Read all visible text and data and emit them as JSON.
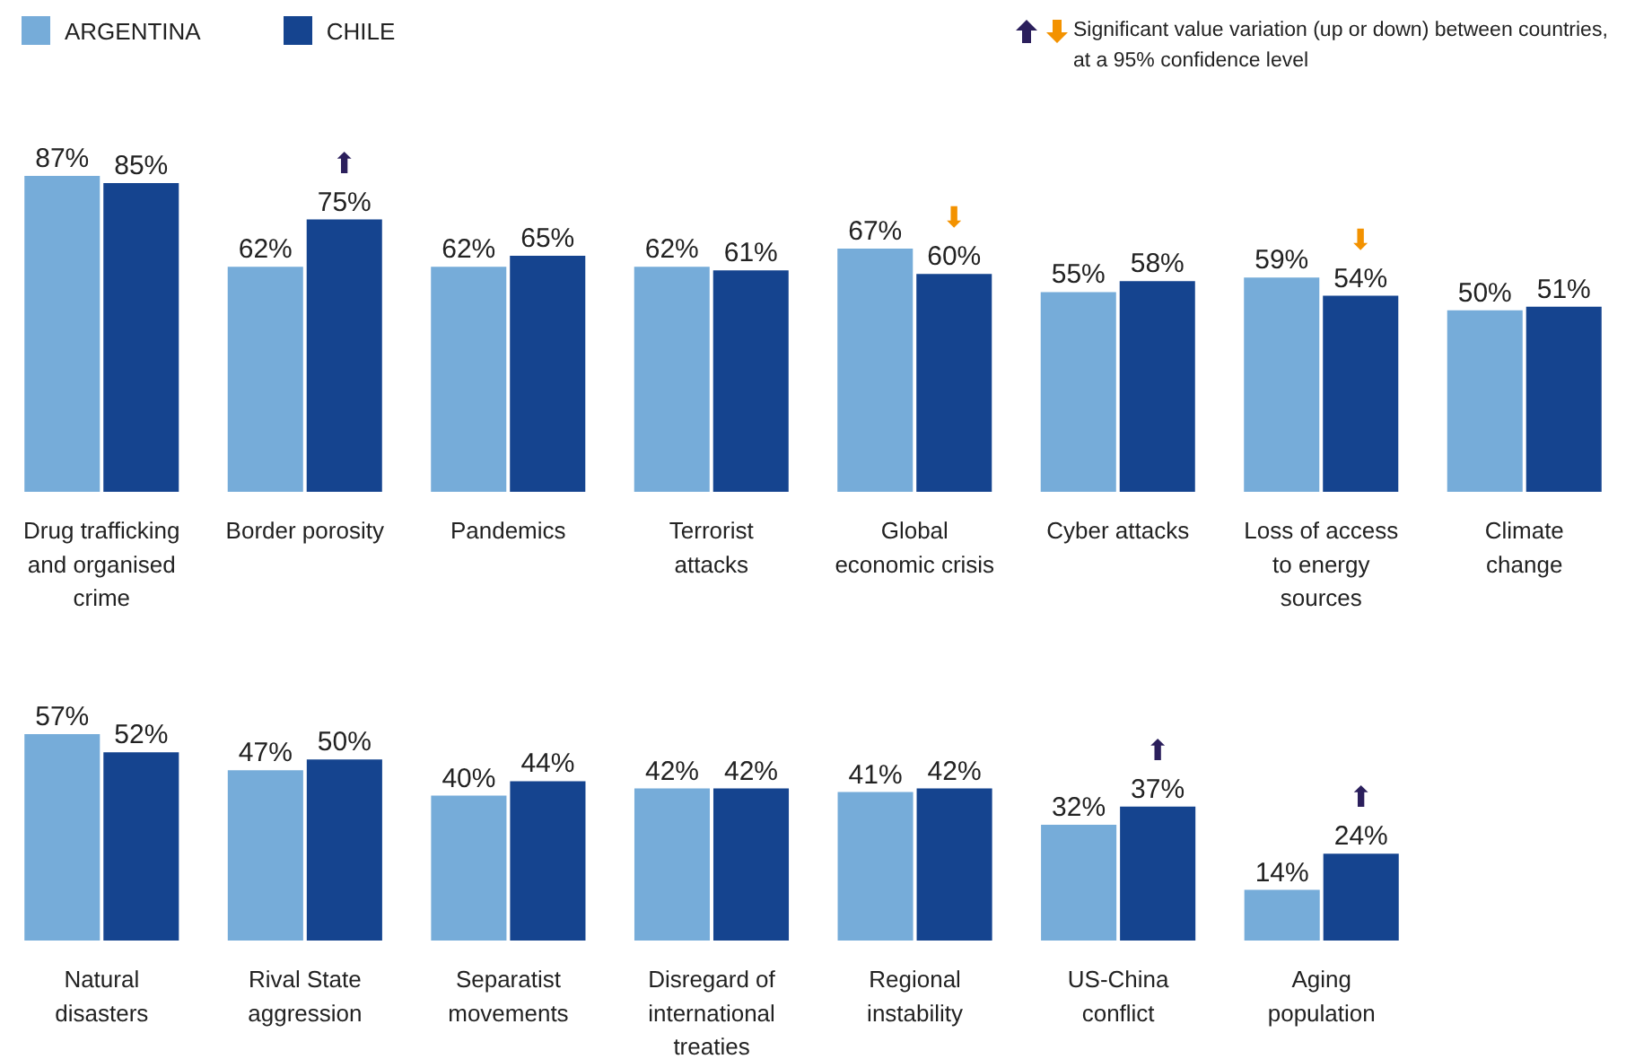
{
  "chart_data": [
    {
      "type": "bar",
      "categories": [
        "Drug trafficking and organised crime",
        "Border porosity",
        "Pandemics",
        "Terrorist attacks",
        "Global economic crisis",
        "Cyber attacks",
        "Loss of access to energy sources",
        "Climate change"
      ],
      "series": [
        {
          "name": "ARGENTINA",
          "color": "#76acd9",
          "values": [
            87,
            62,
            62,
            62,
            67,
            55,
            59,
            50
          ],
          "value_labels": [
            "87%",
            "62%",
            "62%",
            "62%",
            "67%",
            "55%",
            "59%",
            "50%"
          ]
        },
        {
          "name": "CHILE",
          "color": "#15448f",
          "values": [
            85,
            75,
            65,
            61,
            60,
            58,
            54,
            51
          ],
          "value_labels": [
            "85%",
            "75%",
            "65%",
            "61%",
            "60%",
            "58%",
            "54%",
            "51%"
          ]
        }
      ],
      "tick_labels": "x",
      "legend": "top left",
      "annotations": [
        "Significant value variation (up or down) between countries, at a 95% confidence level",
        {
          "text": "⬆",
          "x": "Border porosity",
          "y": 75
        },
        {
          "text": "⬇",
          "x": "Global economic crisis",
          "y": 60
        },
        {
          "text": "⬇",
          "x": "Loss of access to energy sources",
          "y": 54
        }
      ]
    },
    {
      "type": "bar",
      "categories": [
        "Natural disasters",
        "Rival State aggression",
        "Separatist movements",
        "Disregard of international treaties",
        "Regional instability",
        "US-China conflict",
        "Aging population"
      ],
      "series": [
        {
          "color": "#76acd9",
          "values": [
            57,
            47,
            40,
            42,
            41,
            32,
            14
          ],
          "value_labels": [
            "57%",
            "47%",
            "40%",
            "42%",
            "41%",
            "32%",
            "14%"
          ]
        },
        {
          "color": "#15448f",
          "values": [
            52,
            50,
            44,
            42,
            42,
            37,
            24
          ],
          "value_labels": [
            "52%",
            "50%",
            "44%",
            "42%",
            "42%",
            "37%",
            "24%"
          ]
        }
      ],
      "tick_labels": "x",
      "annotations": [
        {
          "text": "⬆",
          "x": "US-China conflict",
          "y": 37
        },
        {
          "text": "⬆",
          "x": "Aging population",
          "y": 24
        }
      ]
    }
  ]
}
